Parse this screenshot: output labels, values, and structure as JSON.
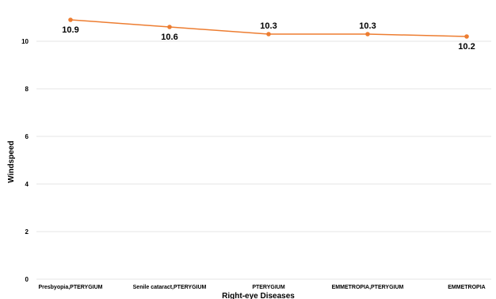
{
  "chart_data": {
    "type": "line",
    "title": "",
    "xlabel": "Right-eye Diseases",
    "ylabel": "Windspeed",
    "categories": [
      "Presbyopia,PTERYGIUM",
      "Senile cataract,PTERYGIUM",
      "PTERYGIUM",
      "EMMETROPIA,PTERYGIUM",
      "EMMETROPIA"
    ],
    "series": [
      {
        "values": [
          10.9,
          10.6,
          10.3,
          10.3,
          10.2
        ],
        "data_labels": [
          "10.9",
          "10.6",
          "10.3",
          "10.3",
          "10.2"
        ]
      }
    ],
    "ylim": [
      0,
      11.2
    ],
    "yticks": [
      0,
      2,
      4,
      6,
      8,
      10
    ],
    "grid": true,
    "legend": "none",
    "line_color": "#ed7d31"
  }
}
